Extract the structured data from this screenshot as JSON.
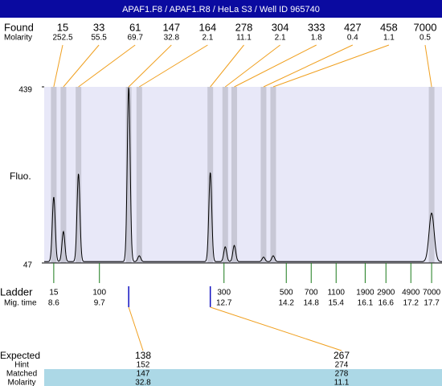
{
  "chart_data": {
    "type": "electropherogram",
    "title": "APAF1.F8 / APAF1.R8 / HeLa S3 / Well ID 965740",
    "y_label": "Fluo.",
    "ylim": [
      47,
      439
    ],
    "yticks": [
      47,
      439
    ],
    "xlim": [
      8.37,
      17.95
    ],
    "baseline": 50,
    "found_label": "Found",
    "molarity_label": "Molarity",
    "peaks": {
      "sizes": [
        15,
        33,
        61,
        147,
        164,
        278,
        304,
        333,
        427,
        458,
        7000
      ],
      "molarity": [
        252.5,
        55.5,
        69.7,
        32.8,
        2.1,
        11.1,
        2.1,
        1.8,
        0.4,
        1.1,
        0.5
      ],
      "heights": [
        194,
        117,
        246,
        439,
        63,
        249,
        83,
        86,
        60,
        63,
        158
      ]
    },
    "ladder_label": "Ladder",
    "mig_time_label": "Mig. time",
    "ladder": {
      "sizes": [
        15,
        100,
        300,
        500,
        700,
        1100,
        1900,
        2900,
        4900,
        7000
      ],
      "mig_times": [
        8.6,
        9.7,
        12.7,
        14.2,
        14.8,
        15.4,
        16.1,
        16.6,
        17.2,
        17.7
      ]
    },
    "expected": {
      "labels": [
        "Expected",
        "Hint",
        "Matched",
        "Molarity"
      ],
      "columns": [
        {
          "expected": 138,
          "hint": 152,
          "matched": 147,
          "molarity": 32.8
        },
        {
          "expected": 267,
          "hint": 274,
          "matched": 278,
          "molarity": 11.1
        }
      ]
    }
  }
}
